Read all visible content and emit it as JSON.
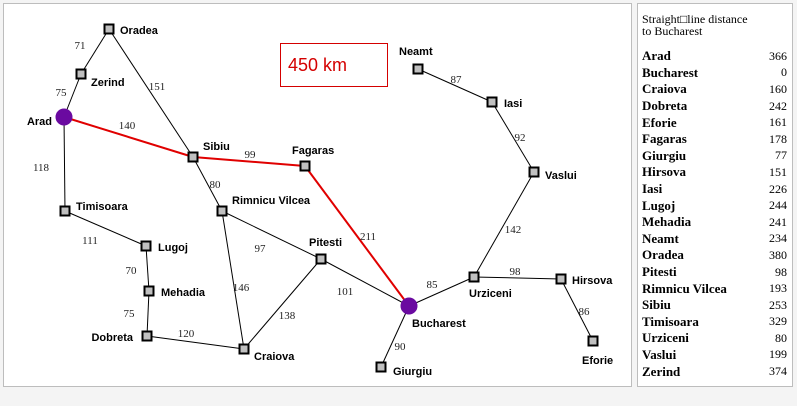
{
  "distance_label": "450 km",
  "table": {
    "heading_line1": "Straight□line distance",
    "heading_line2": "to Bucharest",
    "rows": [
      {
        "city": "Arad",
        "value": "366"
      },
      {
        "city": "Bucharest",
        "value": "0"
      },
      {
        "city": "Craiova",
        "value": "160"
      },
      {
        "city": "Dobreta",
        "value": "242"
      },
      {
        "city": "Eforie",
        "value": "161"
      },
      {
        "city": "Fagaras",
        "value": "178"
      },
      {
        "city": "Giurgiu",
        "value": "77"
      },
      {
        "city": "Hirsova",
        "value": "151"
      },
      {
        "city": "Iasi",
        "value": "226"
      },
      {
        "city": "Lugoj",
        "value": "244"
      },
      {
        "city": "Mehadia",
        "value": "241"
      },
      {
        "city": "Neamt",
        "value": "234"
      },
      {
        "city": "Oradea",
        "value": "380"
      },
      {
        "city": "Pitesti",
        "value": "98"
      },
      {
        "city": "Rimnicu Vilcea",
        "value": "193"
      },
      {
        "city": "Sibiu",
        "value": "253"
      },
      {
        "city": "Timisoara",
        "value": "329"
      },
      {
        "city": "Urziceni",
        "value": "80"
      },
      {
        "city": "Vaslui",
        "value": "199"
      },
      {
        "city": "Zerind",
        "value": "374"
      }
    ]
  },
  "map": {
    "colors": {
      "path": "#e00000",
      "endpoint": "#6a0aa0",
      "node_fill": "#c0c0c0"
    },
    "cities": [
      "Oradea",
      "Zerind",
      "Arad",
      "Timisoara",
      "Lugoj",
      "Mehadia",
      "Dobreta",
      "Craiova",
      "Rimnicu Vilcea",
      "Sibiu",
      "Fagaras",
      "Pitesti",
      "Bucharest",
      "Giurgiu",
      "Urziceni",
      "Hirsova",
      "Eforie",
      "Vaslui",
      "Iasi",
      "Neamt"
    ],
    "edges": [
      {
        "from": "Oradea",
        "to": "Zerind",
        "distance": "71"
      },
      {
        "from": "Oradea",
        "to": "Sibiu",
        "distance": "151"
      },
      {
        "from": "Zerind",
        "to": "Arad",
        "distance": "75"
      },
      {
        "from": "Arad",
        "to": "Sibiu",
        "distance": "140"
      },
      {
        "from": "Arad",
        "to": "Timisoara",
        "distance": "118"
      },
      {
        "from": "Timisoara",
        "to": "Lugoj",
        "distance": "111"
      },
      {
        "from": "Lugoj",
        "to": "Mehadia",
        "distance": "70"
      },
      {
        "from": "Mehadia",
        "to": "Dobreta",
        "distance": "75"
      },
      {
        "from": "Dobreta",
        "to": "Craiova",
        "distance": "120"
      },
      {
        "from": "Sibiu",
        "to": "Fagaras",
        "distance": "99"
      },
      {
        "from": "Sibiu",
        "to": "Rimnicu Vilcea",
        "distance": "80"
      },
      {
        "from": "Rimnicu Vilcea",
        "to": "Pitesti",
        "distance": "97"
      },
      {
        "from": "Rimnicu Vilcea",
        "to": "Craiova",
        "distance": "146"
      },
      {
        "from": "Craiova",
        "to": "Pitesti",
        "distance": "138"
      },
      {
        "from": "Fagaras",
        "to": "Bucharest",
        "distance": "211"
      },
      {
        "from": "Pitesti",
        "to": "Bucharest",
        "distance": "101"
      },
      {
        "from": "Bucharest",
        "to": "Giurgiu",
        "distance": "90"
      },
      {
        "from": "Bucharest",
        "to": "Urziceni",
        "distance": "85"
      },
      {
        "from": "Urziceni",
        "to": "Hirsova",
        "distance": "98"
      },
      {
        "from": "Hirsova",
        "to": "Eforie",
        "distance": "86"
      },
      {
        "from": "Urziceni",
        "to": "Vaslui",
        "distance": "142"
      },
      {
        "from": "Vaslui",
        "to": "Iasi",
        "distance": "92"
      },
      {
        "from": "Iasi",
        "to": "Neamt",
        "distance": "87"
      }
    ],
    "highlighted_path": [
      "Arad",
      "Sibiu",
      "Fagaras",
      "Bucharest"
    ],
    "endpoints": [
      "Arad",
      "Bucharest"
    ]
  }
}
